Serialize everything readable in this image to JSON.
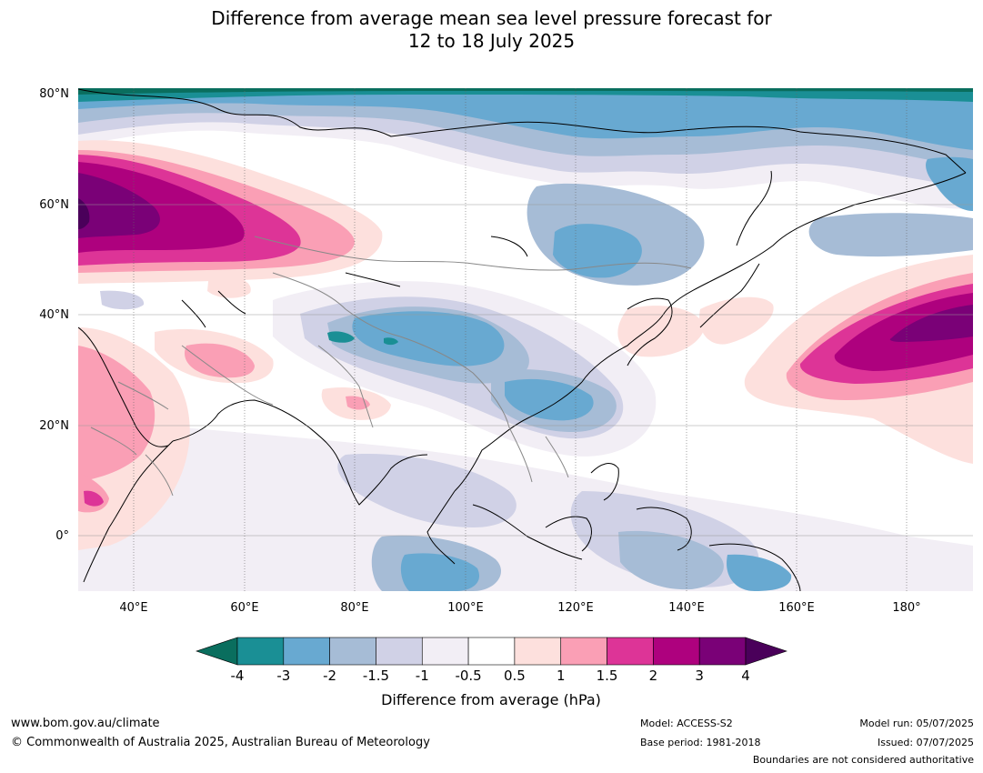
{
  "title": {
    "line1": "Difference from average mean sea level pressure forecast for",
    "line2": "12 to 18 July 2025"
  },
  "map": {
    "lat_labels": [
      "80°N",
      "60°N",
      "40°N",
      "20°N",
      "0°"
    ],
    "lat_values": [
      80,
      60,
      40,
      20,
      0
    ],
    "lon_labels": [
      "40°E",
      "60°E",
      "80°E",
      "100°E",
      "120°E",
      "140°E",
      "160°E",
      "180°"
    ],
    "lon_values": [
      40,
      60,
      80,
      100,
      120,
      140,
      160,
      180
    ],
    "extent": {
      "lon_min": 30,
      "lon_max": 192,
      "lat_min": -10,
      "lat_max": 81
    }
  },
  "colorbar": {
    "title": "Difference from average (hPa)",
    "tick_labels": [
      "-4",
      "-3",
      "-2",
      "-1.5",
      "-1",
      "-0.5",
      "0.5",
      "1",
      "1.5",
      "2",
      "3",
      "4"
    ],
    "colors": [
      "#0a6e5e",
      "#1a8f95",
      "#68a9d1",
      "#a6bcd6",
      "#d0d1e6",
      "#f2eef5",
      "#ffffff",
      "#fde0dd",
      "#fa9fb5",
      "#dd3497",
      "#ae017e",
      "#7a0177",
      "#4a005a"
    ]
  },
  "footer": {
    "url": "www.bom.gov.au/climate",
    "copyright": "© Commonwealth of Australia 2025, Australian Bureau of Meteorology",
    "model": "Model: ACCESS-S2",
    "base_period": "Base period: 1981-2018",
    "model_run": "Model run: 05/07/2025",
    "issued": "Issued: 07/07/2025",
    "note": "Boundaries are not considered authoritative"
  }
}
